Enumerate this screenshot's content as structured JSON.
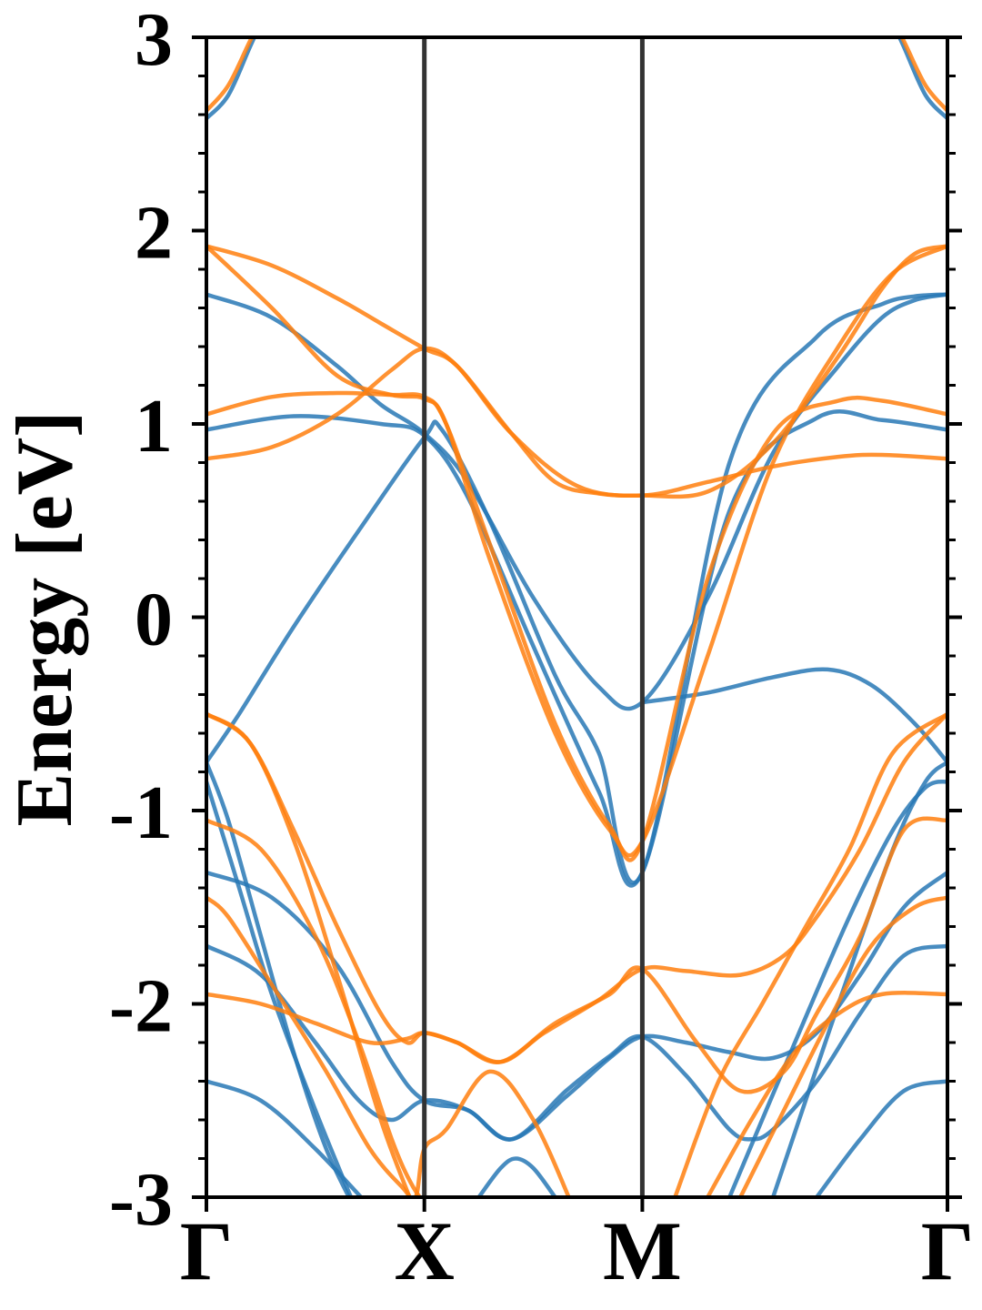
{
  "chart_data": {
    "type": "line",
    "title": "",
    "xlabel": "",
    "ylabel": "Energy [eV]",
    "ylim": [
      -3,
      3
    ],
    "xlim": [
      0,
      3.4
    ],
    "yticks": [
      -3,
      -2,
      -1,
      0,
      1,
      2,
      3
    ],
    "ytick_labels": [
      "-3",
      "-2",
      "-1",
      "0",
      "1",
      "2",
      "3"
    ],
    "high_symmetry_points": [
      {
        "label": "Γ",
        "x": 0
      },
      {
        "label": "X",
        "x": 1.0
      },
      {
        "label": "M",
        "x": 2.0
      },
      {
        "label": "Γ",
        "x": 3.4
      }
    ],
    "grid": false,
    "legend": "none",
    "colors": {
      "blue": "#2878b5",
      "orange": "#ff7f0e",
      "divider": "#333333",
      "axis": "#000000"
    },
    "series": [
      {
        "color": "#2878b5",
        "x": [
          0,
          0.15,
          0.4,
          0.7,
          1.0,
          1.08,
          1.3,
          1.6,
          1.8,
          2.0,
          2.4,
          2.8,
          3.1,
          3.25,
          3.4
        ],
        "y": [
          -0.75,
          -0.5,
          -0.05,
          0.45,
          0.93,
          0.97,
          0.5,
          -0.3,
          -0.7,
          -1.32,
          0.8,
          1.45,
          1.62,
          1.66,
          1.67
        ]
      },
      {
        "color": "#2878b5",
        "x": [
          0,
          0.3,
          0.6,
          0.8,
          1.0,
          1.2,
          1.5,
          1.8,
          2.0,
          2.3,
          2.6,
          2.9,
          3.1,
          3.25,
          3.4
        ],
        "y": [
          1.67,
          1.55,
          1.3,
          1.1,
          0.95,
          0.7,
          0.1,
          -0.36,
          -0.44,
          0.1,
          0.85,
          1.3,
          1.55,
          1.64,
          1.67
        ]
      },
      {
        "color": "#2878b5",
        "x": [
          0,
          0.4,
          0.8,
          1.0,
          1.2,
          1.5,
          1.8,
          2.0,
          2.4,
          2.8,
          3.1,
          3.4
        ],
        "y": [
          0.97,
          1.04,
          1.0,
          0.94,
          0.62,
          -0.15,
          -0.9,
          -1.32,
          0.55,
          1.03,
          1.02,
          0.97
        ]
      },
      {
        "color": "#2878b5",
        "x": [
          2.0,
          2.3,
          2.6,
          2.85,
          3.05,
          3.25,
          3.4
        ],
        "y": [
          -0.44,
          -0.39,
          -0.31,
          -0.27,
          -0.35,
          -0.55,
          -0.75
        ]
      },
      {
        "color": "#2878b5",
        "x": [
          0,
          0.1,
          0.25,
          0.4,
          0.55,
          0.7
        ],
        "y": [
          -0.75,
          -1.05,
          -1.65,
          -2.25,
          -2.75,
          -3.1
        ]
      },
      {
        "color": "#2878b5",
        "x": [
          0,
          0.15,
          0.3,
          0.5,
          0.7
        ],
        "y": [
          -0.85,
          -1.4,
          -1.95,
          -2.55,
          -3.1
        ]
      },
      {
        "color": "#2878b5",
        "x": [
          2.4,
          2.7,
          2.95,
          3.15,
          3.3,
          3.4
        ],
        "y": [
          -3.0,
          -2.2,
          -1.55,
          -1.1,
          -0.88,
          -0.85
        ]
      },
      {
        "color": "#2878b5",
        "x": [
          2.6,
          2.9,
          3.15,
          3.3,
          3.4
        ],
        "y": [
          -3.0,
          -2.0,
          -1.2,
          -0.85,
          -0.75
        ]
      },
      {
        "color": "#2878b5",
        "x": [
          0,
          0.3,
          0.6,
          0.85,
          1.0,
          1.2,
          1.4,
          1.65,
          1.85,
          2.0,
          2.2,
          2.4,
          2.6,
          2.8,
          3.0,
          3.2,
          3.4
        ],
        "y": [
          -1.32,
          -1.45,
          -1.8,
          -2.3,
          -2.5,
          -2.55,
          -2.7,
          -2.48,
          -2.28,
          -2.17,
          -2.2,
          -2.25,
          -2.28,
          -2.15,
          -1.85,
          -1.5,
          -1.32
        ]
      },
      {
        "color": "#2878b5",
        "x": [
          0,
          0.25,
          0.5,
          0.7,
          0.85,
          1.0,
          1.2,
          1.4,
          1.65,
          1.85,
          2.0,
          2.2,
          2.4,
          2.5,
          2.6,
          2.8,
          3.0,
          3.2,
          3.4
        ],
        "y": [
          -1.7,
          -1.85,
          -2.2,
          -2.5,
          -2.6,
          -2.5,
          -2.55,
          -2.7,
          -2.45,
          -2.27,
          -2.17,
          -2.37,
          -2.65,
          -2.7,
          -2.65,
          -2.4,
          -2.05,
          -1.75,
          -1.7
        ]
      },
      {
        "color": "#2878b5",
        "x": [
          0,
          0.25,
          0.5,
          0.75,
          0.95
        ],
        "y": [
          -2.4,
          -2.5,
          -2.75,
          -3.05,
          -3.3
        ]
      },
      {
        "color": "#2878b5",
        "x": [
          2.8,
          3.0,
          3.2,
          3.4
        ],
        "y": [
          -3.0,
          -2.7,
          -2.45,
          -2.4
        ]
      },
      {
        "color": "#2878b5",
        "x": [
          1.25,
          1.35,
          1.42,
          1.5,
          1.6
        ],
        "y": [
          -3.0,
          -2.85,
          -2.8,
          -2.85,
          -3.0
        ]
      },
      {
        "color": "#2878b5",
        "x": [
          0,
          0.1,
          0.2,
          0.3
        ],
        "y": [
          2.58,
          2.7,
          2.95,
          3.2
        ]
      },
      {
        "color": "#2878b5",
        "x": [
          3.1,
          3.2,
          3.3,
          3.4
        ],
        "y": [
          3.2,
          2.95,
          2.7,
          2.58
        ]
      },
      {
        "color": "#ff7f0e",
        "x": [
          0,
          0.3,
          0.6,
          0.8,
          1.0,
          1.15,
          1.4,
          1.6,
          1.8,
          2.0,
          2.3,
          2.6,
          2.9,
          3.1,
          3.25,
          3.4
        ],
        "y": [
          1.92,
          1.82,
          1.65,
          1.52,
          1.39,
          1.3,
          0.95,
          0.7,
          0.64,
          0.63,
          0.65,
          0.9,
          1.35,
          1.7,
          1.88,
          1.92
        ]
      },
      {
        "color": "#ff7f0e",
        "x": [
          0,
          0.3,
          0.6,
          0.85,
          1.0,
          1.1,
          1.3,
          1.6,
          1.85,
          2.0,
          2.3,
          2.6,
          2.9,
          3.15,
          3.4
        ],
        "y": [
          1.92,
          1.6,
          1.25,
          1.15,
          1.13,
          1.0,
          0.3,
          -0.6,
          -1.1,
          -1.16,
          -0.2,
          0.8,
          1.4,
          1.78,
          1.92
        ]
      },
      {
        "color": "#ff7f0e",
        "x": [
          0,
          0.3,
          0.6,
          0.85,
          1.0,
          1.1,
          1.3,
          1.6,
          1.85,
          2.0,
          2.3,
          2.6,
          2.9,
          3.1,
          3.4
        ],
        "y": [
          1.05,
          1.14,
          1.16,
          1.15,
          1.14,
          1.0,
          0.38,
          -0.55,
          -1.08,
          -1.16,
          0.2,
          0.95,
          1.12,
          1.12,
          1.05
        ]
      },
      {
        "color": "#ff7f0e",
        "x": [
          0,
          0.3,
          0.6,
          0.85,
          1.0,
          1.15,
          1.4,
          1.7,
          2.0,
          2.3,
          2.6,
          2.9,
          3.1,
          3.4
        ],
        "y": [
          0.82,
          0.88,
          1.05,
          1.28,
          1.39,
          1.3,
          0.95,
          0.68,
          0.63,
          0.7,
          0.78,
          0.83,
          0.84,
          0.82
        ]
      },
      {
        "color": "#ff7f0e",
        "x": [
          0,
          0.2,
          0.4,
          0.6,
          0.8,
          0.95
        ],
        "y": [
          -0.5,
          -0.65,
          -1.15,
          -1.85,
          -2.6,
          -3.05
        ]
      },
      {
        "color": "#ff7f0e",
        "x": [
          0,
          0.25,
          0.5,
          0.7,
          0.85,
          0.95,
          1.05
        ],
        "y": [
          -1.05,
          -1.2,
          -1.65,
          -2.2,
          -2.7,
          -2.95,
          -3.1
        ]
      },
      {
        "color": "#ff7f0e",
        "x": [
          0,
          0.1,
          0.3,
          0.55,
          0.75,
          0.9,
          0.96,
          1.0,
          1.1,
          1.3,
          1.5,
          1.7
        ],
        "y": [
          -1.45,
          -1.55,
          -1.9,
          -2.35,
          -2.75,
          -2.95,
          -3.0,
          -2.75,
          -2.65,
          -2.35,
          -2.6,
          -3.1
        ]
      },
      {
        "color": "#ff7f0e",
        "x": [
          0,
          0.2,
          0.4,
          0.6,
          0.8,
          0.92,
          1.0,
          1.15,
          1.35,
          1.55,
          1.8,
          2.0,
          2.2,
          2.45,
          2.65,
          2.8,
          3.0,
          3.2,
          3.4
        ],
        "y": [
          -0.5,
          -0.65,
          -1.1,
          -1.6,
          -2.05,
          -2.2,
          -2.15,
          -2.2,
          -2.3,
          -2.15,
          -1.98,
          -1.82,
          -1.83,
          -1.85,
          -1.75,
          -1.55,
          -1.2,
          -0.75,
          -0.5
        ]
      },
      {
        "color": "#ff7f0e",
        "x": [
          0,
          0.25,
          0.5,
          0.75,
          0.92,
          1.0,
          1.15,
          1.35,
          1.6,
          1.85,
          2.0,
          2.25,
          2.45,
          2.65,
          2.8,
          3.0,
          3.2,
          3.4
        ],
        "y": [
          -1.95,
          -2.0,
          -2.1,
          -2.2,
          -2.18,
          -2.15,
          -2.2,
          -2.3,
          -2.1,
          -1.95,
          -1.82,
          -2.2,
          -2.45,
          -2.35,
          -2.05,
          -1.65,
          -1.1,
          -1.05
        ]
      },
      {
        "color": "#ff7f0e",
        "x": [
          2.15,
          2.35,
          2.55,
          2.75,
          2.95,
          3.15,
          3.4
        ],
        "y": [
          -3.0,
          -2.4,
          -2.0,
          -1.6,
          -1.2,
          -0.7,
          -0.5
        ]
      },
      {
        "color": "#ff7f0e",
        "x": [
          2.3,
          2.5,
          2.7,
          2.9,
          3.1,
          3.4
        ],
        "y": [
          -3.0,
          -2.6,
          -2.25,
          -2.05,
          -1.95,
          -1.95
        ]
      },
      {
        "color": "#ff7f0e",
        "x": [
          2.45,
          2.65,
          2.85,
          3.05,
          3.25,
          3.4
        ],
        "y": [
          -3.0,
          -2.55,
          -2.1,
          -1.7,
          -1.5,
          -1.45
        ]
      },
      {
        "color": "#ff7f0e",
        "x": [
          0,
          0.1,
          0.2,
          0.3
        ],
        "y": [
          2.62,
          2.75,
          2.98,
          3.2
        ]
      },
      {
        "color": "#ff7f0e",
        "x": [
          3.1,
          3.2,
          3.3,
          3.4
        ],
        "y": [
          3.2,
          2.98,
          2.75,
          2.62
        ]
      }
    ]
  }
}
